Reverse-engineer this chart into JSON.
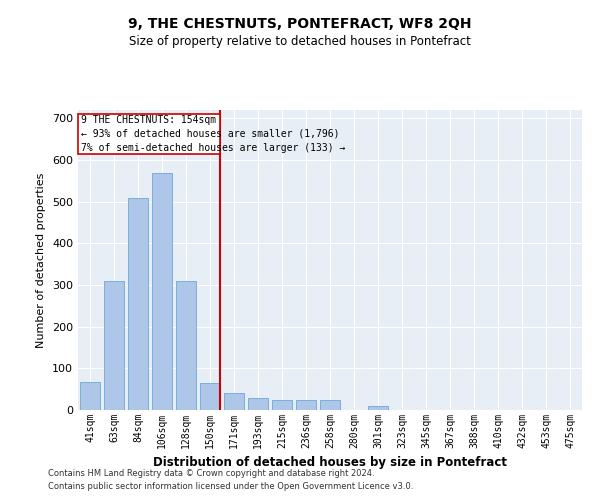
{
  "title": "9, THE CHESTNUTS, PONTEFRACT, WF8 2QH",
  "subtitle": "Size of property relative to detached houses in Pontefract",
  "xlabel": "Distribution of detached houses by size in Pontefract",
  "ylabel": "Number of detached properties",
  "categories": [
    "41sqm",
    "63sqm",
    "84sqm",
    "106sqm",
    "128sqm",
    "150sqm",
    "171sqm",
    "193sqm",
    "215sqm",
    "236sqm",
    "258sqm",
    "280sqm",
    "301sqm",
    "323sqm",
    "345sqm",
    "367sqm",
    "388sqm",
    "410sqm",
    "432sqm",
    "453sqm",
    "475sqm"
  ],
  "values": [
    68,
    310,
    510,
    570,
    310,
    65,
    40,
    30,
    25,
    25,
    25,
    0,
    10,
    0,
    0,
    0,
    0,
    0,
    0,
    0,
    0
  ],
  "bar_color": "#aec6e8",
  "bar_edge_color": "#5a9fd4",
  "vline_x_index": 5.42,
  "vline_color": "#cc0000",
  "annotation_text_line1": "9 THE CHESTNUTS: 154sqm",
  "annotation_text_line2": "← 93% of detached houses are smaller (1,796)",
  "annotation_text_line3": "7% of semi-detached houses are larger (133) →",
  "annotation_box_color": "#ffffff",
  "annotation_box_edge_color": "#cc0000",
  "ylim": [
    0,
    720
  ],
  "yticks": [
    0,
    100,
    200,
    300,
    400,
    500,
    600,
    700
  ],
  "bg_color": "#e8eef5",
  "grid_color": "#ffffff",
  "footer_line1": "Contains HM Land Registry data © Crown copyright and database right 2024.",
  "footer_line2": "Contains public sector information licensed under the Open Government Licence v3.0."
}
